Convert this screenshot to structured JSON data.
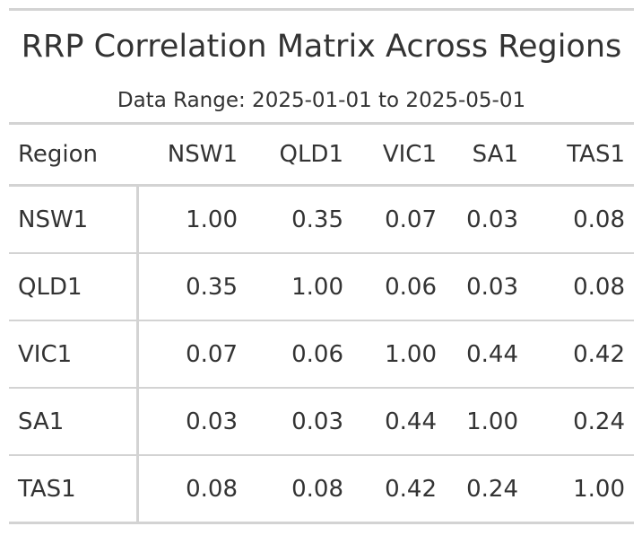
{
  "title": "RRP Correlation Matrix Across Regions",
  "subtitle": "Data Range: 2025-01-01 to 2025-05-01",
  "table": {
    "stub_header": "Region",
    "columns": [
      "NSW1",
      "QLD1",
      "VIC1",
      "SA1",
      "TAS1"
    ],
    "rows": [
      {
        "region": "NSW1",
        "values": [
          "1.00",
          "0.35",
          "0.07",
          "0.03",
          "0.08"
        ]
      },
      {
        "region": "QLD1",
        "values": [
          "0.35",
          "1.00",
          "0.06",
          "0.03",
          "0.08"
        ]
      },
      {
        "region": "VIC1",
        "values": [
          "0.07",
          "0.06",
          "1.00",
          "0.44",
          "0.42"
        ]
      },
      {
        "region": "SA1",
        "values": [
          "0.03",
          "0.03",
          "0.44",
          "1.00",
          "0.24"
        ]
      },
      {
        "region": "TAS1",
        "values": [
          "0.08",
          "0.08",
          "0.42",
          "0.24",
          "1.00"
        ]
      }
    ]
  },
  "colors": {
    "text": "#333333",
    "rule": "#d3d3d3",
    "background": "#ffffff"
  }
}
